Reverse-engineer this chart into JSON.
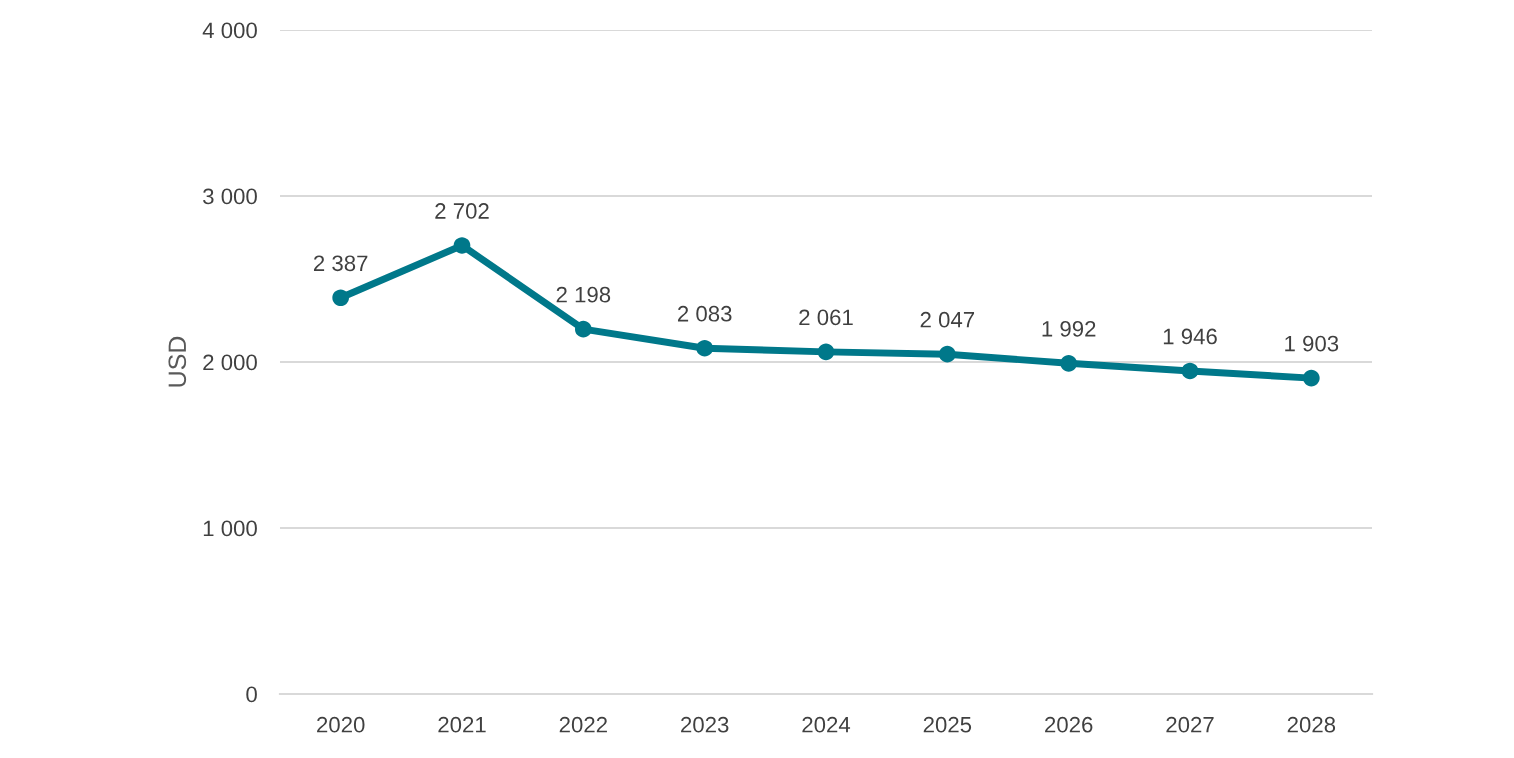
{
  "chart_data": {
    "type": "line",
    "ylabel": "USD",
    "categories": [
      "2020",
      "2021",
      "2022",
      "2023",
      "2024",
      "2025",
      "2026",
      "2027",
      "2028"
    ],
    "series": [
      {
        "color": "#00788a",
        "values": [
          2387,
          2702,
          2198,
          2083,
          2061,
          2047,
          1992,
          1946,
          1903
        ],
        "value_labels": [
          "2 387",
          "2 702",
          "2 198",
          "2 083",
          "2 061",
          "2 047",
          "1 992",
          "1 946",
          "1 903"
        ]
      }
    ],
    "ylim": [
      0,
      4000
    ],
    "yticks": [
      0,
      {
        "value": 1000,
        "label": "1 000"
      },
      {
        "value": 2000,
        "label": "2 000"
      },
      {
        "value": 3000,
        "label": "3 000"
      },
      {
        "value": 4000,
        "label": "4 000"
      }
    ],
    "grid": "y",
    "marker": "circle",
    "line_style": "solid",
    "legend": false
  }
}
